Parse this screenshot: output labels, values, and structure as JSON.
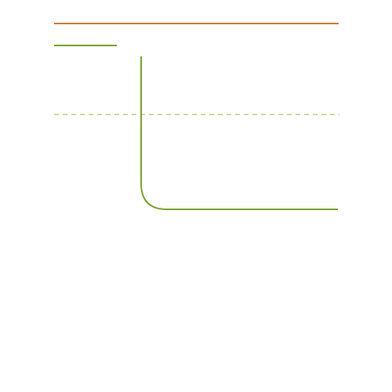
{
  "colors": {
    "background": "#ffffff",
    "orange_line": "#d8792a",
    "green_line": "#7aa32a",
    "dashed_line": "#c9dca0"
  },
  "elements": {
    "top_line": {
      "style": "solid",
      "color_key": "orange_line"
    },
    "short_line": {
      "style": "solid",
      "color_key": "green_line"
    },
    "dashed_guide": {
      "style": "dashed",
      "color_key": "dashed_line"
    },
    "elbow_connector": {
      "style": "solid",
      "shape": "vertical-then-rounded-corner-then-horizontal",
      "color_key": "green_line"
    }
  }
}
